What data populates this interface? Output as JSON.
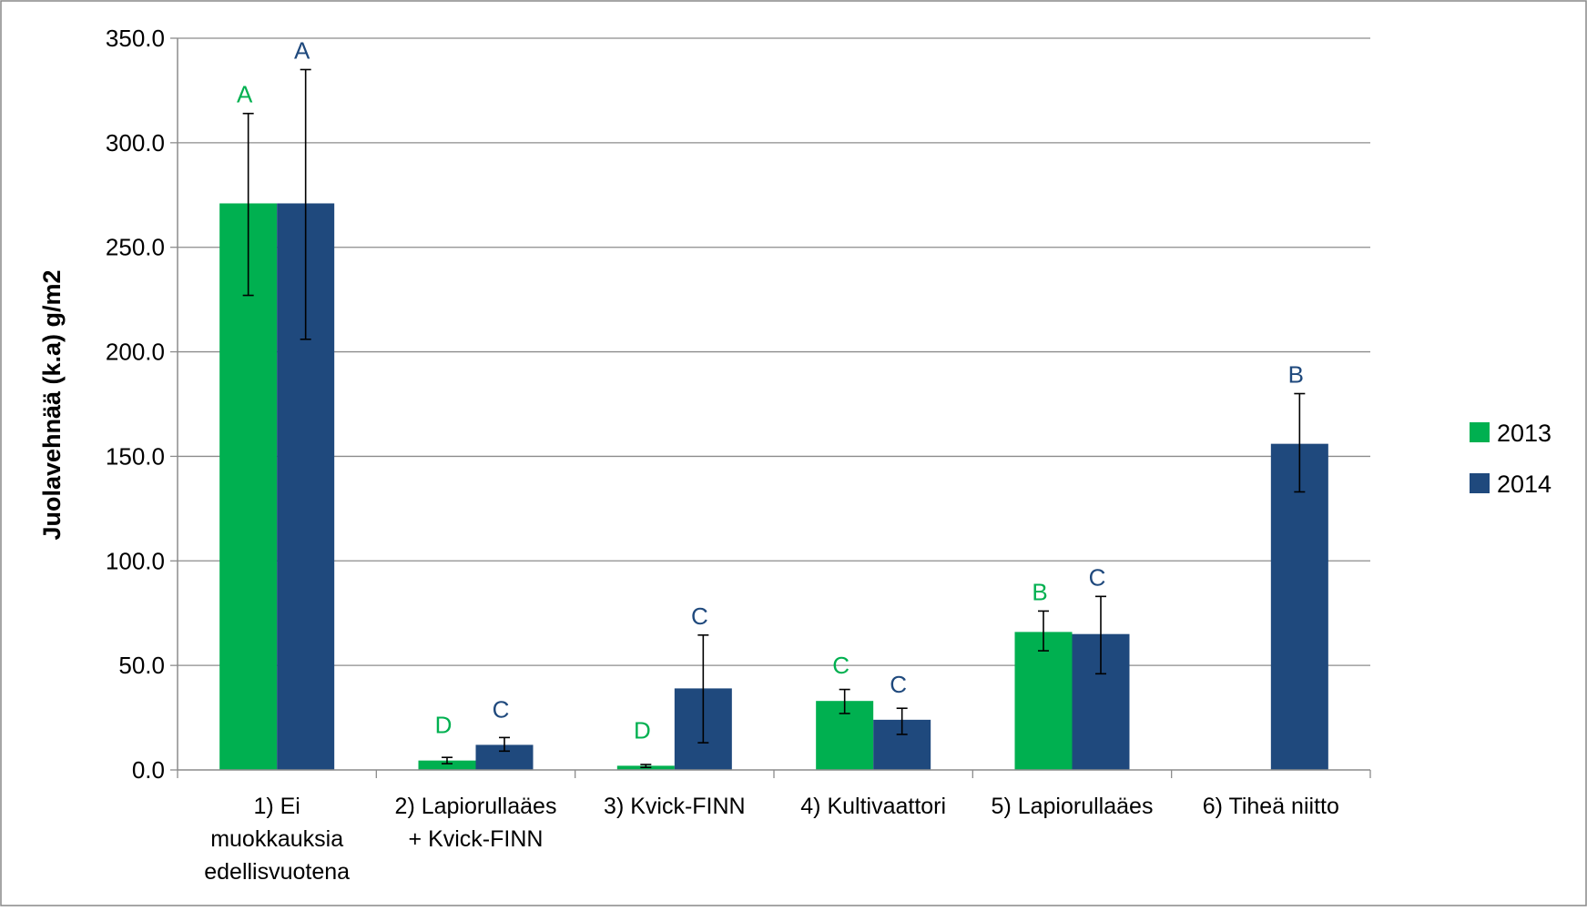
{
  "chart_data": {
    "type": "bar",
    "title": "",
    "xlabel": "",
    "ylabel": "Juolavehnää  (k.a)  g/m2",
    "ylim": [
      0,
      350
    ],
    "yticks": [
      "0.0",
      "50.0",
      "100.0",
      "150.0",
      "200.0",
      "250.0",
      "300.0",
      "350.0"
    ],
    "grid": true,
    "legend": "right",
    "categories": [
      [
        "1) Ei",
        "muokkauksia",
        "edellisvuotena"
      ],
      [
        "2) Lapiorullaäes",
        "+ Kvick-FINN"
      ],
      [
        "3) Kvick-FINN"
      ],
      [
        "4) Kultivaattori"
      ],
      [
        "5) Lapiorullaäes"
      ],
      [
        "6) Tiheä niitto"
      ]
    ],
    "series": [
      {
        "name": "2013",
        "color": "#00b050",
        "values": [
          271,
          4.5,
          2,
          33,
          66,
          null
        ],
        "err_low": [
          227,
          3,
          1.2,
          27,
          57,
          null
        ],
        "err_high": [
          314,
          6,
          2.6,
          38.5,
          76,
          null
        ],
        "letters": [
          "A",
          "D",
          "D",
          "C",
          "B",
          null
        ]
      },
      {
        "name": "2014",
        "color": "#1f497d",
        "values": [
          271,
          12,
          39,
          24,
          65,
          156
        ],
        "err_low": [
          206,
          9,
          13,
          17,
          46,
          133
        ],
        "err_high": [
          335,
          15.5,
          64.5,
          29.5,
          83,
          180
        ],
        "letters": [
          "A",
          "C",
          "C",
          "C",
          "C",
          "B"
        ]
      }
    ]
  }
}
